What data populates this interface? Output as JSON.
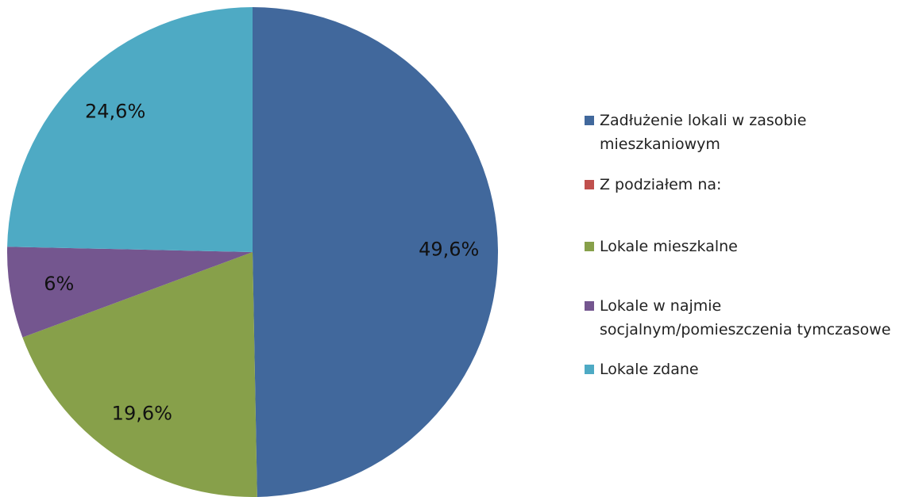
{
  "chart_data": {
    "type": "pie",
    "categories": [
      "Zadłużenie lokali w zasobie mieszkaniowym",
      "Z podziałem na:",
      "Lokale mieszkalne",
      "Lokale w najmie socjalnym/pomieszczenia tymczasowe",
      "Lokale zdane"
    ],
    "values": [
      49.6,
      0,
      19.6,
      6,
      24.6
    ],
    "value_labels": [
      "49,6%",
      null,
      "19,6%",
      "6%",
      "24,6%"
    ],
    "colors": [
      "#41689c",
      "#c0504d",
      "#87a04a",
      "#74568f",
      "#4eaac4"
    ],
    "legend": "right"
  }
}
